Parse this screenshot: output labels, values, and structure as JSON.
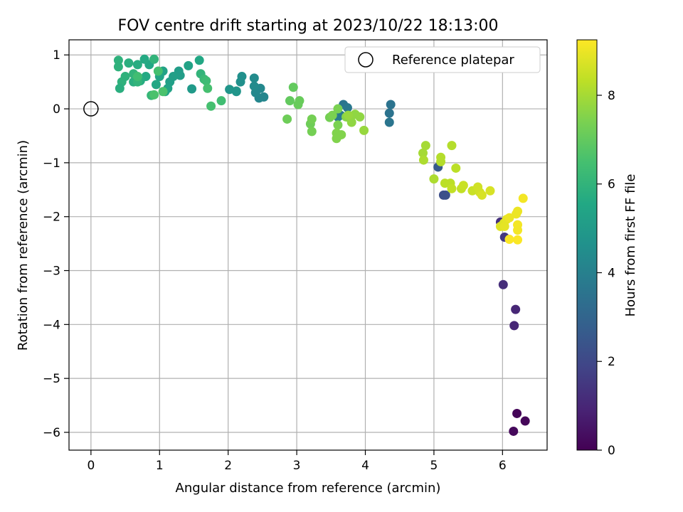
{
  "chart_data": {
    "type": "scatter",
    "title": "FOV centre drift starting at 2023/10/22 18:13:00",
    "xlabel": "Angular distance from reference (arcmin)",
    "ylabel": "Rotation from reference (arcmin)",
    "xlim": [
      -0.32,
      6.65
    ],
    "ylim": [
      -6.33,
      1.28
    ],
    "x_ticks": [
      0,
      1,
      2,
      3,
      4,
      5,
      6
    ],
    "y_ticks": [
      1,
      0,
      -1,
      -2,
      -3,
      -4,
      -5,
      -6
    ],
    "grid": true,
    "legend": {
      "position": "top-right",
      "entries": [
        "Reference platepar"
      ]
    },
    "reference_point": {
      "x": 0,
      "y": 0,
      "label": "Reference platepar",
      "marker": "open-circle"
    },
    "colorbar": {
      "label": "Hours from first FF file",
      "colormap": "viridis",
      "range": [
        0,
        9.25
      ],
      "ticks": [
        0,
        2,
        4,
        6,
        8
      ]
    },
    "series": [
      {
        "points": [
          {
            "x": 6.21,
            "y": -5.65,
            "c": 0.1
          },
          {
            "x": 6.33,
            "y": -5.79,
            "c": 0.15
          },
          {
            "x": 6.16,
            "y": -5.98,
            "c": 0.2
          },
          {
            "x": 6.19,
            "y": -3.72,
            "c": 1.0
          },
          {
            "x": 6.17,
            "y": -4.02,
            "c": 1.0
          },
          {
            "x": 6.01,
            "y": -3.26,
            "c": 1.2
          },
          {
            "x": 5.97,
            "y": -2.1,
            "c": 1.3
          },
          {
            "x": 6.03,
            "y": -2.38,
            "c": 1.5
          },
          {
            "x": 5.14,
            "y": -1.6,
            "c": 2.2
          },
          {
            "x": 5.17,
            "y": -1.6,
            "c": 2.3
          },
          {
            "x": 5.06,
            "y": -1.08,
            "c": 2.6
          },
          {
            "x": 4.37,
            "y": 0.08,
            "c": 3.5
          },
          {
            "x": 4.35,
            "y": -0.08,
            "c": 3.5
          },
          {
            "x": 4.35,
            "y": -0.25,
            "c": 3.6
          },
          {
            "x": 3.68,
            "y": 0.08,
            "c": 3.6
          },
          {
            "x": 3.74,
            "y": 0.02,
            "c": 3.7
          },
          {
            "x": 3.64,
            "y": -0.12,
            "c": 3.8
          },
          {
            "x": 3.6,
            "y": -0.15,
            "c": 3.8
          },
          {
            "x": 2.52,
            "y": 0.22,
            "c": 4.2
          },
          {
            "x": 2.45,
            "y": 0.2,
            "c": 4.2
          },
          {
            "x": 2.47,
            "y": 0.38,
            "c": 4.3
          },
          {
            "x": 2.4,
            "y": 0.3,
            "c": 4.3
          },
          {
            "x": 2.38,
            "y": 0.42,
            "c": 4.4
          },
          {
            "x": 2.38,
            "y": 0.57,
            "c": 4.4
          },
          {
            "x": 2.2,
            "y": 0.6,
            "c": 4.6
          },
          {
            "x": 2.18,
            "y": 0.5,
            "c": 4.6
          },
          {
            "x": 2.12,
            "y": 0.32,
            "c": 4.7
          },
          {
            "x": 2.02,
            "y": 0.36,
            "c": 4.8
          },
          {
            "x": 2.12,
            "y": 0.33,
            "c": 4.8
          },
          {
            "x": 1.47,
            "y": 0.37,
            "c": 5.0
          },
          {
            "x": 1.3,
            "y": 0.62,
            "c": 5.1
          },
          {
            "x": 1.28,
            "y": 0.7,
            "c": 5.1
          },
          {
            "x": 1.2,
            "y": 0.6,
            "c": 5.2
          },
          {
            "x": 1.15,
            "y": 0.5,
            "c": 5.2
          },
          {
            "x": 1.12,
            "y": 0.38,
            "c": 5.3
          },
          {
            "x": 1.05,
            "y": 0.7,
            "c": 5.3
          },
          {
            "x": 1.08,
            "y": 0.32,
            "c": 5.4
          },
          {
            "x": 1.0,
            "y": 0.6,
            "c": 5.4
          },
          {
            "x": 0.95,
            "y": 0.45,
            "c": 5.5
          },
          {
            "x": 0.85,
            "y": 0.82,
            "c": 5.5
          },
          {
            "x": 0.8,
            "y": 0.6,
            "c": 5.6
          },
          {
            "x": 0.78,
            "y": 0.92,
            "c": 5.6
          },
          {
            "x": 0.72,
            "y": 0.52,
            "c": 5.7
          },
          {
            "x": 0.68,
            "y": 0.82,
            "c": 5.7
          },
          {
            "x": 0.62,
            "y": 0.5,
            "c": 5.8
          },
          {
            "x": 0.55,
            "y": 0.85,
            "c": 5.8
          },
          {
            "x": 0.5,
            "y": 0.6,
            "c": 5.9
          },
          {
            "x": 0.45,
            "y": 0.5,
            "c": 5.9
          },
          {
            "x": 0.4,
            "y": 0.9,
            "c": 5.9
          },
          {
            "x": 0.4,
            "y": 0.78,
            "c": 5.9
          },
          {
            "x": 0.42,
            "y": 0.38,
            "c": 5.8
          },
          {
            "x": 0.62,
            "y": 0.65,
            "c": 6.0
          },
          {
            "x": 0.68,
            "y": 0.5,
            "c": 6.0
          },
          {
            "x": 0.92,
            "y": 0.92,
            "c": 6.0
          },
          {
            "x": 0.88,
            "y": 0.25,
            "c": 6.1
          },
          {
            "x": 1.42,
            "y": 0.8,
            "c": 5.3
          },
          {
            "x": 1.58,
            "y": 0.9,
            "c": 5.5
          },
          {
            "x": 1.6,
            "y": 0.65,
            "c": 6.0
          },
          {
            "x": 1.65,
            "y": 0.55,
            "c": 6.2
          },
          {
            "x": 1.68,
            "y": 0.52,
            "c": 6.3
          },
          {
            "x": 1.9,
            "y": 0.15,
            "c": 6.4
          },
          {
            "x": 1.75,
            "y": 0.05,
            "c": 6.5
          },
          {
            "x": 1.7,
            "y": 0.38,
            "c": 6.5
          },
          {
            "x": 0.98,
            "y": 0.7,
            "c": 6.5
          },
          {
            "x": 1.05,
            "y": 0.32,
            "c": 6.6
          },
          {
            "x": 0.92,
            "y": 0.26,
            "c": 6.6
          },
          {
            "x": 0.68,
            "y": 0.6,
            "c": 6.4
          },
          {
            "x": 2.95,
            "y": 0.4,
            "c": 7.0
          },
          {
            "x": 2.9,
            "y": 0.15,
            "c": 7.0
          },
          {
            "x": 3.02,
            "y": 0.08,
            "c": 7.1
          },
          {
            "x": 3.04,
            "y": 0.15,
            "c": 7.1
          },
          {
            "x": 2.86,
            "y": -0.19,
            "c": 7.2
          },
          {
            "x": 3.2,
            "y": -0.28,
            "c": 7.2
          },
          {
            "x": 3.22,
            "y": -0.19,
            "c": 7.3
          },
          {
            "x": 3.22,
            "y": -0.42,
            "c": 7.3
          },
          {
            "x": 3.48,
            "y": -0.16,
            "c": 7.3
          },
          {
            "x": 3.52,
            "y": -0.12,
            "c": 7.4
          },
          {
            "x": 3.6,
            "y": 0.0,
            "c": 7.4
          },
          {
            "x": 3.6,
            "y": -0.3,
            "c": 7.4
          },
          {
            "x": 3.58,
            "y": -0.45,
            "c": 7.5
          },
          {
            "x": 3.65,
            "y": -0.48,
            "c": 7.5
          },
          {
            "x": 3.58,
            "y": -0.55,
            "c": 7.5
          },
          {
            "x": 3.72,
            "y": -0.15,
            "c": 7.6
          },
          {
            "x": 3.78,
            "y": -0.18,
            "c": 7.6
          },
          {
            "x": 3.8,
            "y": -0.25,
            "c": 7.7
          },
          {
            "x": 3.85,
            "y": -0.1,
            "c": 7.7
          },
          {
            "x": 3.92,
            "y": -0.15,
            "c": 7.7
          },
          {
            "x": 3.98,
            "y": -0.4,
            "c": 7.8
          },
          {
            "x": 3.75,
            "y": -0.12,
            "c": 7.8
          },
          {
            "x": 4.84,
            "y": -0.82,
            "c": 8.0
          },
          {
            "x": 4.88,
            "y": -0.68,
            "c": 8.0
          },
          {
            "x": 4.85,
            "y": -0.95,
            "c": 8.1
          },
          {
            "x": 5.0,
            "y": -1.3,
            "c": 8.1
          },
          {
            "x": 5.1,
            "y": -0.9,
            "c": 8.2
          },
          {
            "x": 5.1,
            "y": -0.98,
            "c": 8.2
          },
          {
            "x": 5.26,
            "y": -0.68,
            "c": 8.2
          },
          {
            "x": 5.32,
            "y": -1.1,
            "c": 8.3
          },
          {
            "x": 5.16,
            "y": -1.38,
            "c": 8.3
          },
          {
            "x": 5.24,
            "y": -1.38,
            "c": 8.3
          },
          {
            "x": 5.26,
            "y": -1.48,
            "c": 8.4
          },
          {
            "x": 5.4,
            "y": -1.48,
            "c": 8.4
          },
          {
            "x": 5.43,
            "y": -1.42,
            "c": 8.5
          },
          {
            "x": 5.56,
            "y": -1.52,
            "c": 8.5
          },
          {
            "x": 5.64,
            "y": -1.45,
            "c": 8.6
          },
          {
            "x": 5.67,
            "y": -1.55,
            "c": 8.6
          },
          {
            "x": 5.7,
            "y": -1.6,
            "c": 8.7
          },
          {
            "x": 5.82,
            "y": -1.52,
            "c": 8.7
          },
          {
            "x": 5.97,
            "y": -2.18,
            "c": 8.8
          },
          {
            "x": 6.02,
            "y": -2.12,
            "c": 8.8
          },
          {
            "x": 6.03,
            "y": -2.18,
            "c": 8.9
          },
          {
            "x": 6.06,
            "y": -2.05,
            "c": 8.9
          },
          {
            "x": 6.1,
            "y": -2.02,
            "c": 9.0
          },
          {
            "x": 6.22,
            "y": -1.9,
            "c": 9.0
          },
          {
            "x": 6.2,
            "y": -1.95,
            "c": 9.0
          },
          {
            "x": 6.22,
            "y": -2.15,
            "c": 9.1
          },
          {
            "x": 6.22,
            "y": -2.25,
            "c": 9.1
          },
          {
            "x": 6.3,
            "y": -1.66,
            "c": 9.1
          },
          {
            "x": 6.22,
            "y": -2.43,
            "c": 9.2
          },
          {
            "x": 6.1,
            "y": -2.42,
            "c": 9.2
          }
        ]
      }
    ]
  }
}
